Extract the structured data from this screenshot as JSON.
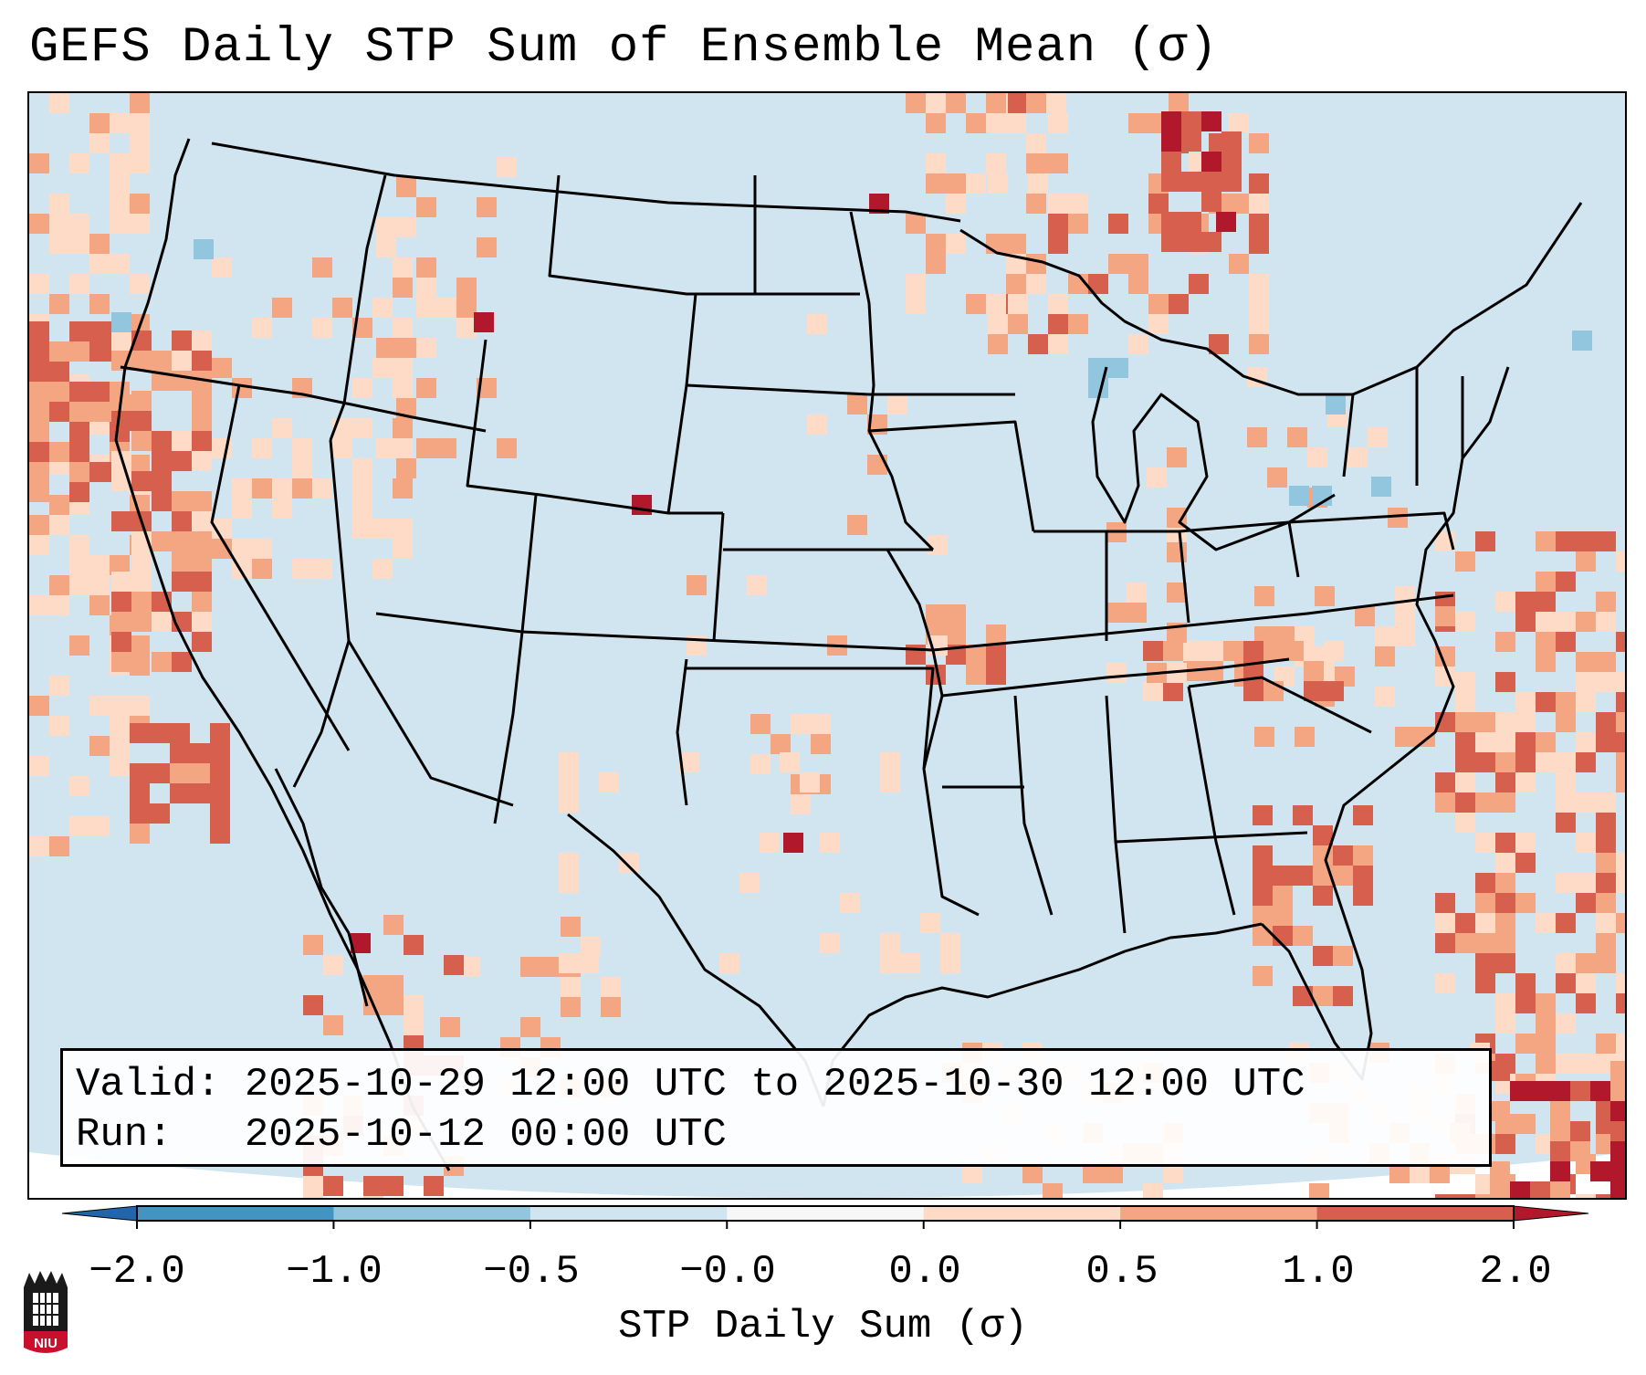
{
  "title": "GEFS Daily STP Sum of Ensemble Mean (σ)",
  "info": {
    "valid_line": "Valid: 2025-10-29 12:00 UTC to 2025-10-30 12:00 UTC",
    "run_line": "Run:   2025-10-12 00:00 UTC"
  },
  "colorbar": {
    "label": "STP Daily Sum (σ)",
    "tick_labels": [
      "−2.0",
      "−1.0",
      "−0.5",
      "−0.0",
      "0.0",
      "0.5",
      "1.0",
      "2.0"
    ],
    "bins": [
      {
        "from": -2.0,
        "to": -1.0,
        "color": "#4393c3"
      },
      {
        "from": -1.0,
        "to": -0.5,
        "color": "#92c5de"
      },
      {
        "from": -0.5,
        "to": -0.0,
        "color": "#d1e5f0"
      },
      {
        "from": -0.0,
        "to": 0.0,
        "color": "#f7f7f7"
      },
      {
        "from": 0.0,
        "to": 0.5,
        "color": "#fddbc7"
      },
      {
        "from": 0.5,
        "to": 1.0,
        "color": "#f4a582"
      },
      {
        "from": 1.0,
        "to": 2.0,
        "color": "#d6604d"
      }
    ],
    "under_color": "#2166ac",
    "over_color": "#b2182b"
  },
  "colors": {
    "background_field": "#d1e5f0",
    "light_red": "#fddbc7",
    "medium_red": "#f4a582",
    "strong_red": "#d6604d",
    "dark_red": "#b2182b",
    "light_blue": "#92c5de",
    "medium_blue": "#4393c3"
  },
  "logo": {
    "text": "NIU"
  }
}
